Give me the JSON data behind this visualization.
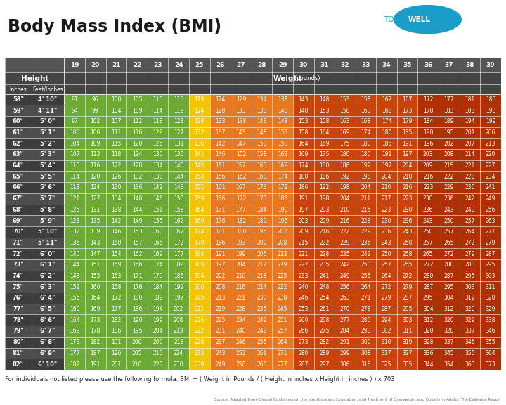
{
  "title": "Body Mass Index (BMI)",
  "bmi_cols": [
    19,
    20,
    21,
    22,
    23,
    24,
    25,
    26,
    27,
    28,
    29,
    30,
    31,
    32,
    33,
    34,
    35,
    36,
    37,
    38,
    39
  ],
  "heights_inches": [
    58,
    59,
    60,
    61,
    62,
    63,
    64,
    65,
    66,
    67,
    68,
    69,
    70,
    71,
    72,
    73,
    74,
    75,
    76,
    77,
    78,
    79,
    80,
    81,
    82
  ],
  "heights_feet": [
    "4' 10\"",
    "4' 11\"",
    "5' 0\"",
    "5' 1\"",
    "5' 2\"",
    "5' 3\"",
    "5' 4\"",
    "5' 5\"",
    "5' 6\"",
    "5' 7\"",
    "5' 8\"",
    "5' 9\"",
    "5' 10\"",
    "5' 11\"",
    "6' 0\"",
    "6' 1\"",
    "6' 2\"",
    "6' 3\"",
    "6' 4\"",
    "6' 5\"",
    "6' 6\"",
    "6' 7\"",
    "6' 8\"",
    "6' 9\"",
    "6' 10\""
  ],
  "data": [
    [
      91,
      96,
      100,
      105,
      110,
      115,
      119,
      124,
      129,
      134,
      138,
      143,
      148,
      153,
      158,
      162,
      167,
      172,
      177,
      181,
      186
    ],
    [
      94,
      99,
      104,
      109,
      114,
      119,
      124,
      128,
      133,
      138,
      143,
      148,
      153,
      158,
      163,
      168,
      173,
      178,
      183,
      188,
      193
    ],
    [
      97,
      102,
      107,
      112,
      118,
      123,
      128,
      133,
      138,
      143,
      148,
      153,
      158,
      163,
      168,
      174,
      179,
      184,
      189,
      194,
      199
    ],
    [
      100,
      106,
      111,
      116,
      122,
      127,
      132,
      137,
      143,
      148,
      153,
      158,
      164,
      169,
      174,
      180,
      185,
      190,
      195,
      201,
      206
    ],
    [
      104,
      109,
      115,
      120,
      126,
      131,
      136,
      142,
      147,
      153,
      158,
      164,
      169,
      175,
      180,
      186,
      191,
      196,
      202,
      207,
      213
    ],
    [
      107,
      113,
      118,
      124,
      130,
      135,
      141,
      146,
      152,
      158,
      163,
      169,
      175,
      180,
      186,
      191,
      197,
      203,
      208,
      214,
      220
    ],
    [
      110,
      116,
      122,
      128,
      134,
      140,
      145,
      151,
      157,
      163,
      169,
      174,
      180,
      186,
      192,
      197,
      204,
      209,
      215,
      221,
      227
    ],
    [
      114,
      120,
      126,
      132,
      138,
      144,
      150,
      156,
      162,
      168,
      174,
      180,
      186,
      192,
      198,
      204,
      210,
      216,
      222,
      228,
      234
    ],
    [
      118,
      124,
      130,
      136,
      142,
      148,
      155,
      161,
      167,
      173,
      179,
      186,
      192,
      198,
      204,
      210,
      216,
      223,
      229,
      235,
      241
    ],
    [
      121,
      127,
      134,
      140,
      146,
      153,
      159,
      166,
      172,
      178,
      185,
      191,
      198,
      204,
      211,
      217,
      223,
      230,
      236,
      242,
      249
    ],
    [
      125,
      131,
      138,
      144,
      151,
      158,
      164,
      171,
      177,
      184,
      190,
      197,
      203,
      210,
      216,
      223,
      230,
      236,
      243,
      249,
      256
    ],
    [
      128,
      135,
      142,
      149,
      155,
      162,
      169,
      176,
      182,
      189,
      196,
      203,
      209,
      216,
      223,
      230,
      236,
      243,
      250,
      257,
      263
    ],
    [
      132,
      139,
      146,
      153,
      160,
      167,
      174,
      181,
      188,
      195,
      202,
      209,
      216,
      222,
      229,
      236,
      243,
      250,
      257,
      264,
      271
    ],
    [
      136,
      143,
      150,
      157,
      165,
      172,
      179,
      186,
      193,
      200,
      208,
      215,
      222,
      229,
      236,
      243,
      250,
      257,
      265,
      272,
      279
    ],
    [
      140,
      147,
      154,
      162,
      169,
      177,
      184,
      191,
      199,
      206,
      213,
      221,
      228,
      235,
      242,
      250,
      258,
      265,
      272,
      279,
      287
    ],
    [
      144,
      151,
      159,
      166,
      174,
      182,
      189,
      197,
      204,
      212,
      219,
      227,
      235,
      242,
      250,
      257,
      265,
      272,
      280,
      288,
      295
    ],
    [
      148,
      155,
      163,
      171,
      179,
      186,
      194,
      202,
      210,
      218,
      225,
      233,
      241,
      249,
      256,
      264,
      272,
      280,
      287,
      295,
      303
    ],
    [
      152,
      160,
      168,
      176,
      184,
      192,
      200,
      208,
      216,
      224,
      232,
      240,
      248,
      256,
      264,
      272,
      279,
      287,
      295,
      303,
      311
    ],
    [
      156,
      164,
      172,
      180,
      189,
      197,
      205,
      213,
      221,
      230,
      238,
      246,
      254,
      263,
      271,
      279,
      287,
      295,
      304,
      312,
      320
    ],
    [
      160,
      169,
      177,
      186,
      194,
      202,
      211,
      219,
      228,
      236,
      245,
      253,
      261,
      270,
      278,
      287,
      295,
      304,
      312,
      320,
      329
    ],
    [
      164,
      173,
      182,
      190,
      199,
      208,
      216,
      225,
      234,
      242,
      251,
      260,
      268,
      277,
      286,
      294,
      303,
      312,
      320,
      329,
      338
    ],
    [
      169,
      178,
      186,
      195,
      204,
      213,
      222,
      231,
      240,
      249,
      257,
      266,
      275,
      284,
      293,
      302,
      311,
      320,
      328,
      337,
      346
    ],
    [
      173,
      182,
      191,
      200,
      209,
      218,
      228,
      237,
      246,
      255,
      264,
      273,
      282,
      291,
      300,
      310,
      319,
      328,
      337,
      346,
      355
    ],
    [
      177,
      187,
      196,
      205,
      215,
      224,
      233,
      243,
      252,
      261,
      271,
      280,
      289,
      299,
      308,
      317,
      327,
      336,
      345,
      355,
      364
    ],
    [
      182,
      191,
      201,
      210,
      220,
      230,
      239,
      249,
      258,
      268,
      277,
      287,
      297,
      306,
      316,
      325,
      335,
      344,
      354,
      363,
      373
    ]
  ],
  "colors": {
    "green": "#6aaa35",
    "yellow": "#f5c400",
    "orange_light": "#e87722",
    "orange_dark": "#c8440a",
    "dark_red": "#b03000",
    "header1_bg": "#555555",
    "header2_bg": "#444444",
    "row_dark": "#3d3d3d",
    "row_light": "#4d4d4d",
    "text_white": "#ffffff",
    "text_black": "#1a1a1a",
    "bg": "#ffffff",
    "cyan": "#1a9dc9",
    "formula_color": "#222222",
    "source_color": "#666666"
  },
  "formula_text": "For individuals not listed please use the following formula: BMI = ( Weight in Pounds / ( Height in inches x Height in inches ) ) x 703",
  "source_text": "Source: Adapted from Clinical Guidelines on the Identification, Evaluation, and Treatment of Overweight and Obesity in Adults: The Evidence Report"
}
